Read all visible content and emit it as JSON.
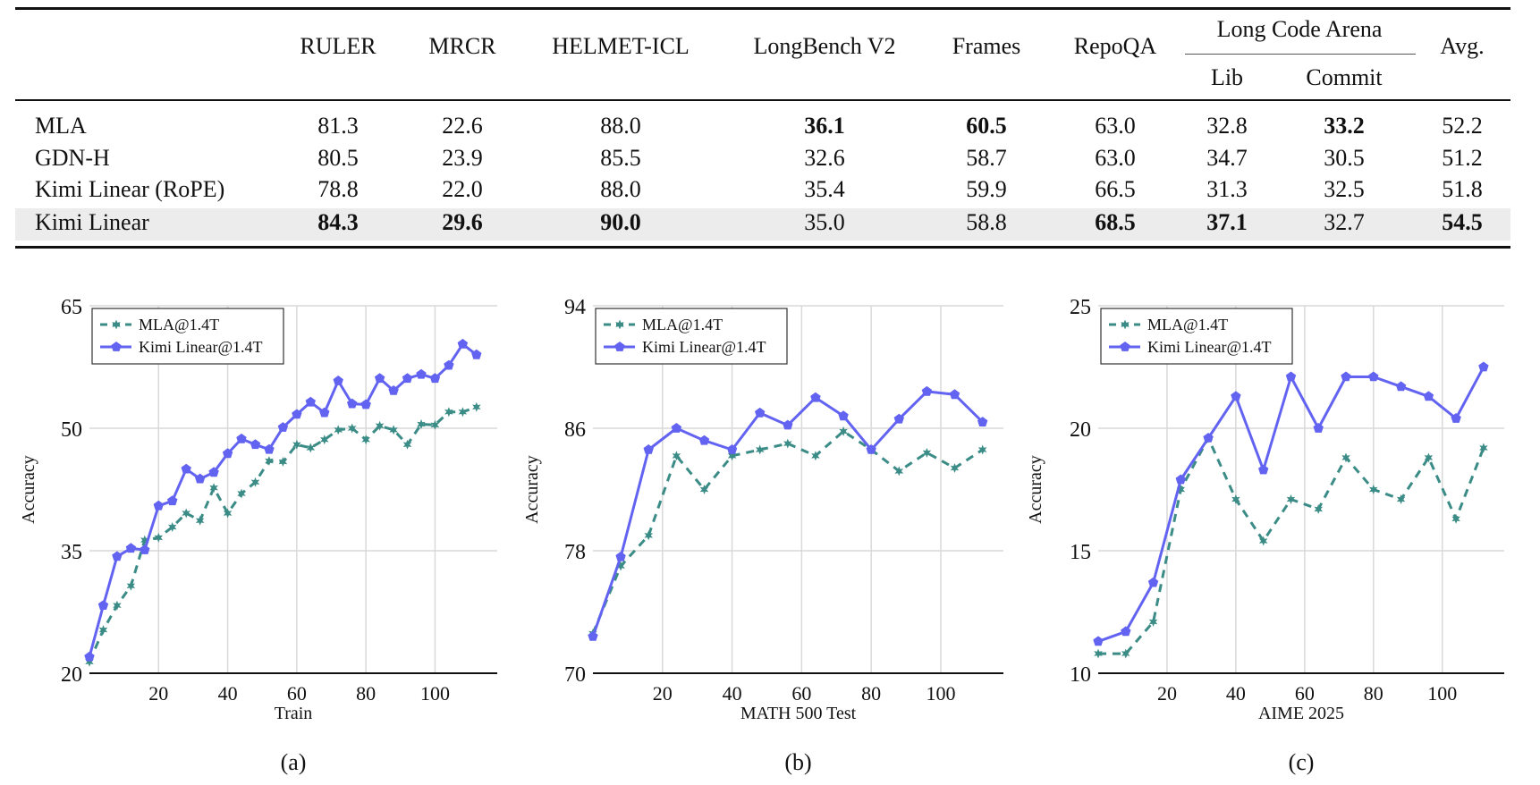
{
  "table": {
    "columns": [
      "RULER",
      "MRCR",
      "HELMET-ICL",
      "LongBench V2",
      "Frames",
      "RepoQA"
    ],
    "group_header": "Long Code Arena",
    "group_columns": [
      "Lib",
      "Commit"
    ],
    "last_column": "Avg.",
    "rows": [
      {
        "model": "MLA",
        "values": [
          "81.3",
          "22.6",
          "88.0",
          "36.1",
          "60.5",
          "63.0",
          "32.8",
          "33.2",
          "52.2"
        ],
        "bold": [
          3,
          4,
          7
        ]
      },
      {
        "model": "GDN-H",
        "values": [
          "80.5",
          "23.9",
          "85.5",
          "32.6",
          "58.7",
          "63.0",
          "34.7",
          "30.5",
          "51.2"
        ],
        "bold": []
      },
      {
        "model": "Kimi Linear (RoPE)",
        "values": [
          "78.8",
          "22.0",
          "88.0",
          "35.4",
          "59.9",
          "66.5",
          "31.3",
          "32.5",
          "51.8"
        ],
        "bold": []
      },
      {
        "model": "Kimi Linear",
        "values": [
          "84.3",
          "29.6",
          "90.0",
          "35.0",
          "58.8",
          "68.5",
          "37.1",
          "32.7",
          "54.5"
        ],
        "bold": [
          0,
          1,
          2,
          5,
          6,
          8
        ],
        "highlighted": true
      }
    ]
  },
  "colors": {
    "mla": "#3b8c86",
    "kimi": "#6363f2",
    "grid": "#d9d9d9",
    "highlight": "#ececec"
  },
  "chart_data": [
    {
      "type": "line",
      "panel": "(a)",
      "xlabel": "Train",
      "ylabel": "Accuracy",
      "ylim": [
        20,
        65
      ],
      "yticks": [
        20,
        35,
        50,
        65
      ],
      "xticks": [
        20,
        40,
        60,
        80,
        100
      ],
      "xlim": [
        0,
        118
      ],
      "grid": true,
      "legend": "top-left",
      "series": [
        {
          "name": "MLA@1.4T",
          "style": "dashed",
          "marker": "star",
          "x": [
            0,
            4,
            8,
            12,
            16,
            20,
            24,
            28,
            32,
            36,
            40,
            44,
            48,
            52,
            56,
            60,
            64,
            68,
            72,
            76,
            80,
            84,
            88,
            92,
            96,
            100,
            104,
            108,
            112
          ],
          "y": [
            21.4,
            25.3,
            28.3,
            30.7,
            36.3,
            36.6,
            37.9,
            39.6,
            38.7,
            42.7,
            39.6,
            42.0,
            43.4,
            46.0,
            45.9,
            48.0,
            47.6,
            48.6,
            49.8,
            50.0,
            48.6,
            50.3,
            49.8,
            48.0,
            50.5,
            50.4,
            52.0,
            52.0,
            52.6
          ]
        },
        {
          "name": "Kimi Linear@1.4T",
          "style": "solid",
          "marker": "pentagon",
          "x": [
            0,
            4,
            8,
            12,
            16,
            20,
            24,
            28,
            32,
            36,
            40,
            44,
            48,
            52,
            56,
            60,
            64,
            68,
            72,
            76,
            80,
            84,
            88,
            92,
            96,
            100,
            104,
            108,
            112
          ],
          "y": [
            22.0,
            28.3,
            34.3,
            35.3,
            35.1,
            40.5,
            41.1,
            45.0,
            43.8,
            44.6,
            46.9,
            48.7,
            48.0,
            47.4,
            50.1,
            51.7,
            53.2,
            51.9,
            55.8,
            53.0,
            52.9,
            56.1,
            54.6,
            56.1,
            56.6,
            56.1,
            57.7,
            60.3,
            59.0
          ]
        }
      ]
    },
    {
      "type": "line",
      "panel": "(b)",
      "xlabel": "MATH 500 Test",
      "ylabel": "Accuracy",
      "ylim": [
        70,
        94
      ],
      "yticks": [
        70,
        78,
        86,
        94
      ],
      "xticks": [
        20,
        40,
        60,
        80,
        100
      ],
      "xlim": [
        0,
        118
      ],
      "grid": true,
      "legend": "top-left",
      "series": [
        {
          "name": "MLA@1.4T",
          "style": "dashed",
          "marker": "star",
          "x": [
            0,
            8,
            16,
            24,
            32,
            40,
            48,
            56,
            64,
            72,
            80,
            88,
            96,
            104,
            112
          ],
          "y": [
            72.6,
            77.0,
            79.0,
            84.2,
            82.0,
            84.2,
            84.6,
            85.0,
            84.2,
            85.8,
            84.6,
            83.2,
            84.4,
            83.4,
            84.6
          ]
        },
        {
          "name": "Kimi Linear@1.4T",
          "style": "solid",
          "marker": "pentagon",
          "x": [
            0,
            8,
            16,
            24,
            32,
            40,
            48,
            56,
            64,
            72,
            80,
            88,
            96,
            104,
            112
          ],
          "y": [
            72.4,
            77.6,
            84.6,
            86.0,
            85.2,
            84.6,
            87.0,
            86.2,
            88.0,
            86.8,
            84.6,
            86.6,
            88.4,
            88.2,
            86.4
          ]
        }
      ]
    },
    {
      "type": "line",
      "panel": "(c)",
      "xlabel": "AIME 2025",
      "ylabel": "Accuracy",
      "ylim": [
        10,
        25
      ],
      "yticks": [
        10,
        15,
        20,
        25
      ],
      "xticks": [
        20,
        40,
        60,
        80,
        100
      ],
      "xlim": [
        0,
        118
      ],
      "grid": true,
      "legend": "top-left",
      "series": [
        {
          "name": "MLA@1.4T",
          "style": "dashed",
          "marker": "star",
          "x": [
            0,
            8,
            16,
            24,
            32,
            40,
            48,
            56,
            64,
            72,
            80,
            88,
            96,
            104,
            112
          ],
          "y": [
            10.8,
            10.8,
            12.1,
            17.5,
            19.6,
            17.1,
            15.4,
            17.1,
            16.7,
            18.8,
            17.5,
            17.1,
            18.8,
            16.3,
            19.2
          ]
        },
        {
          "name": "Kimi Linear@1.4T",
          "style": "solid",
          "marker": "pentagon",
          "x": [
            0,
            8,
            16,
            24,
            32,
            40,
            48,
            56,
            64,
            72,
            80,
            88,
            96,
            104,
            112
          ],
          "y": [
            11.3,
            11.7,
            13.7,
            17.9,
            19.6,
            21.3,
            18.3,
            22.1,
            20.0,
            22.1,
            22.1,
            21.7,
            21.3,
            20.4,
            22.5
          ]
        }
      ]
    }
  ]
}
